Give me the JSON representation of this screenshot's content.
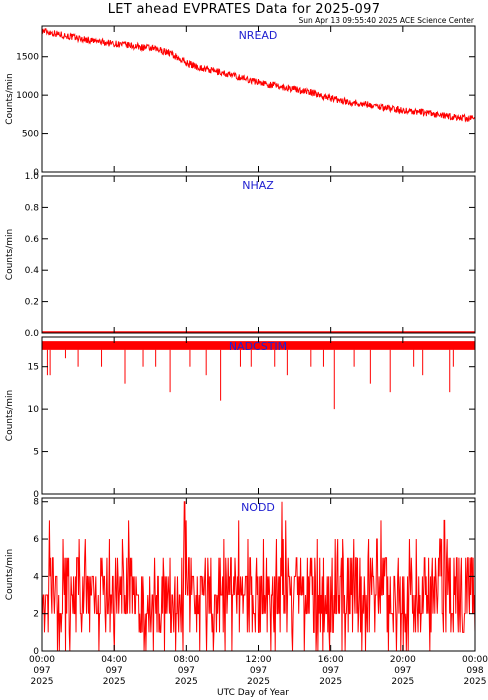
{
  "title": "LET ahead EVPRATES Data for 2025-097",
  "subtitle": "Sun Apr 13 09:55:40 2025 ACE Science Center",
  "xlabel": "UTC Day of Year",
  "colors": {
    "series": "#ff0000",
    "panel_label": "#2020d0",
    "axes": "#000000"
  },
  "x_ticks": [
    {
      "hours": 0,
      "lines": [
        "00:00",
        "097",
        "2025"
      ]
    },
    {
      "hours": 4,
      "lines": [
        "04:00",
        "097",
        "2025"
      ]
    },
    {
      "hours": 8,
      "lines": [
        "08:00",
        "097",
        "2025"
      ]
    },
    {
      "hours": 12,
      "lines": [
        "12:00",
        "097",
        "2025"
      ]
    },
    {
      "hours": 16,
      "lines": [
        "16:00",
        "097",
        "2025"
      ]
    },
    {
      "hours": 20,
      "lines": [
        "20:00",
        "097",
        "2025"
      ]
    },
    {
      "hours": 24,
      "lines": [
        "00:00",
        "098",
        "2025"
      ]
    }
  ],
  "chart_data": [
    {
      "type": "line",
      "series": [
        {
          "name": "NREAD"
        }
      ],
      "ylabel": "Counts/min",
      "ylim": [
        0,
        1900
      ],
      "yticks": [
        0,
        500,
        1000,
        1500
      ],
      "xlim_hours": [
        0,
        24
      ],
      "grid": false,
      "x_hours": [
        0,
        1,
        2,
        3,
        4,
        5,
        6,
        7,
        8,
        9,
        10,
        11,
        12,
        13,
        14,
        15,
        16,
        17,
        18,
        19,
        20,
        21,
        22,
        23,
        24
      ],
      "values": [
        1840,
        1790,
        1740,
        1700,
        1670,
        1640,
        1610,
        1560,
        1420,
        1340,
        1290,
        1230,
        1170,
        1120,
        1080,
        1030,
        960,
        910,
        880,
        840,
        800,
        780,
        740,
        710,
        690
      ]
    },
    {
      "type": "line",
      "series": [
        {
          "name": "NHAZ"
        }
      ],
      "ylabel": "Counts/min",
      "ylim": [
        0,
        1.0
      ],
      "yticks": [
        0.0,
        0.2,
        0.4,
        0.6,
        0.8,
        1.0
      ],
      "xlim_hours": [
        0,
        24
      ],
      "grid": false,
      "x_hours": [
        0,
        24
      ],
      "values": [
        0,
        0
      ]
    },
    {
      "type": "line",
      "series": [
        {
          "name": "NADCSTIM"
        }
      ],
      "ylabel": "Counts/min",
      "ylim": [
        0,
        18.5
      ],
      "yticks": [
        0,
        5,
        10,
        15
      ],
      "xlim_hours": [
        0,
        24
      ],
      "grid": false,
      "baseline_values": [
        17,
        18
      ],
      "dips": [
        {
          "hour": 0.3,
          "value": 14
        },
        {
          "hour": 0.45,
          "value": 14
        },
        {
          "hour": 1.3,
          "value": 16
        },
        {
          "hour": 2.0,
          "value": 15
        },
        {
          "hour": 3.3,
          "value": 15
        },
        {
          "hour": 4.6,
          "value": 13
        },
        {
          "hour": 5.6,
          "value": 15
        },
        {
          "hour": 6.3,
          "value": 15
        },
        {
          "hour": 7.1,
          "value": 12
        },
        {
          "hour": 8.2,
          "value": 15
        },
        {
          "hour": 9.1,
          "value": 14
        },
        {
          "hour": 9.9,
          "value": 11
        },
        {
          "hour": 11.0,
          "value": 15
        },
        {
          "hour": 11.6,
          "value": 15
        },
        {
          "hour": 12.9,
          "value": 15
        },
        {
          "hour": 13.6,
          "value": 14
        },
        {
          "hour": 14.9,
          "value": 15
        },
        {
          "hour": 15.6,
          "value": 15
        },
        {
          "hour": 16.2,
          "value": 10
        },
        {
          "hour": 17.3,
          "value": 15
        },
        {
          "hour": 18.2,
          "value": 13
        },
        {
          "hour": 19.3,
          "value": 12
        },
        {
          "hour": 20.6,
          "value": 15
        },
        {
          "hour": 21.1,
          "value": 14
        },
        {
          "hour": 22.6,
          "value": 12
        },
        {
          "hour": 22.8,
          "value": 15
        }
      ]
    },
    {
      "type": "line",
      "series": [
        {
          "name": "NODD"
        }
      ],
      "ylabel": "Counts/min",
      "ylim": [
        0,
        8.2
      ],
      "yticks": [
        0,
        2,
        4,
        6,
        8
      ],
      "xlim_hours": [
        0,
        24
      ],
      "grid": false,
      "value_range": [
        0,
        8
      ],
      "typical_range": [
        1,
        5
      ],
      "peaks": [
        {
          "hour": 7.9,
          "value": 8
        },
        {
          "hour": 8.0,
          "value": 7
        },
        {
          "hour": 13.3,
          "value": 8
        },
        {
          "hour": 13.5,
          "value": 7
        },
        {
          "hour": 4.8,
          "value": 7
        },
        {
          "hour": 10.9,
          "value": 7
        },
        {
          "hour": 18.8,
          "value": 7
        },
        {
          "hour": 0.4,
          "value": 7
        },
        {
          "hour": 22.3,
          "value": 7
        }
      ]
    }
  ]
}
